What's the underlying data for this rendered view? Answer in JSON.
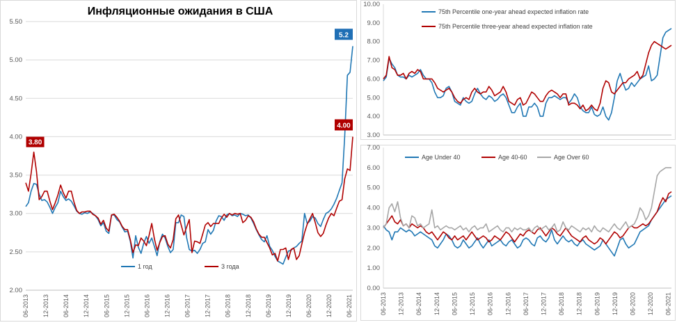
{
  "colors": {
    "blue": "#1f77b4",
    "red": "#b00000",
    "gray": "#a6a6a6",
    "grid": "#d9d9d9",
    "axis": "#bfbfbf",
    "blue_label_bg": "#1f6fb5",
    "red_label_bg": "#b00000"
  },
  "x_labels": [
    "06-2013",
    "12-2013",
    "06-2014",
    "12-2014",
    "06-2015",
    "12-2015",
    "06-2016",
    "12-2016",
    "06-2017",
    "12-2017",
    "06-2018",
    "12-2018",
    "06-2019",
    "12-2019",
    "06-2020",
    "12-2020",
    "06-2021"
  ],
  "chart_data": [
    {
      "type": "line",
      "title": "Инфляционные ожидания в США",
      "x_start": "06-2013",
      "x_end": "07-2021",
      "ylim": [
        2.0,
        5.5
      ],
      "yticks": [
        "2.00",
        "2.50",
        "3.00",
        "3.50",
        "4.00",
        "4.50",
        "5.00",
        "5.50"
      ],
      "grid": true,
      "legend_position": "bottom-center",
      "series": [
        {
          "name": "1 год",
          "color": "blue",
          "end_label": "5.2",
          "values": [
            3.09,
            3.14,
            3.29,
            3.39,
            3.38,
            3.25,
            3.17,
            3.18,
            3.15,
            3.08,
            3.0,
            3.08,
            3.14,
            3.29,
            3.22,
            3.17,
            3.19,
            3.16,
            3.1,
            3.03,
            3.0,
            2.99,
            3.01,
            3.0,
            3.02,
            3.0,
            2.97,
            2.92,
            2.84,
            2.88,
            2.77,
            2.74,
            2.98,
            2.98,
            2.92,
            2.89,
            2.82,
            2.76,
            2.77,
            2.64,
            2.42,
            2.71,
            2.56,
            2.48,
            2.61,
            2.7,
            2.61,
            2.68,
            2.57,
            2.45,
            2.63,
            2.73,
            2.68,
            2.57,
            2.49,
            2.53,
            2.88,
            2.88,
            2.98,
            2.96,
            2.69,
            2.53,
            2.51,
            2.52,
            2.48,
            2.53,
            2.61,
            2.63,
            2.79,
            2.73,
            2.78,
            2.9,
            2.97,
            2.96,
            2.91,
            2.98,
            3.0,
            2.97,
            2.98,
            2.96,
            3.0,
            2.99,
            2.97,
            2.98,
            2.94,
            2.87,
            2.79,
            2.72,
            2.66,
            2.63,
            2.71,
            2.57,
            2.52,
            2.44,
            2.38,
            2.36,
            2.34,
            2.43,
            2.51,
            2.52,
            2.55,
            2.57,
            2.61,
            2.64,
            3.0,
            2.87,
            2.9,
            2.96,
            2.94,
            2.87,
            2.83,
            2.92,
            3.0,
            3.02,
            3.06,
            3.12,
            3.2,
            3.3,
            3.4,
            4.0,
            4.8,
            4.84,
            5.18
          ]
        },
        {
          "name": "3 года",
          "color": "red",
          "end_label": "4.00",
          "values": [
            3.4,
            3.29,
            3.52,
            3.8,
            3.55,
            3.18,
            3.22,
            3.29,
            3.29,
            3.16,
            3.05,
            3.14,
            3.24,
            3.37,
            3.27,
            3.2,
            3.29,
            3.29,
            3.15,
            3.04,
            3.0,
            3.02,
            3.02,
            3.03,
            3.03,
            2.99,
            2.97,
            2.94,
            2.86,
            2.91,
            2.81,
            2.77,
            2.98,
            2.99,
            2.95,
            2.9,
            2.83,
            2.79,
            2.79,
            2.66,
            2.49,
            2.59,
            2.58,
            2.68,
            2.64,
            2.58,
            2.71,
            2.87,
            2.67,
            2.52,
            2.62,
            2.7,
            2.71,
            2.6,
            2.55,
            2.66,
            2.93,
            2.98,
            2.85,
            2.72,
            2.82,
            2.92,
            2.49,
            2.64,
            2.63,
            2.61,
            2.73,
            2.85,
            2.88,
            2.83,
            2.87,
            2.87,
            2.87,
            2.94,
            2.99,
            2.95,
            3.0,
            2.98,
            3.0,
            2.99,
            3.0,
            2.88,
            2.91,
            2.97,
            2.95,
            2.89,
            2.8,
            2.73,
            2.69,
            2.69,
            2.62,
            2.55,
            2.46,
            2.48,
            2.38,
            2.53,
            2.53,
            2.55,
            2.4,
            2.53,
            2.55,
            2.4,
            2.45,
            2.6,
            2.75,
            2.86,
            2.93,
            3.0,
            2.88,
            2.75,
            2.7,
            2.74,
            2.85,
            2.94,
            3.0,
            2.97,
            3.07,
            3.16,
            3.18,
            3.45,
            3.58,
            3.56,
            4.0
          ]
        }
      ]
    },
    {
      "type": "line",
      "x_start": "06-2013",
      "x_end": "07-2021",
      "ylim": [
        3.0,
        10.0
      ],
      "yticks": [
        "3.00",
        "4.00",
        "5.00",
        "6.00",
        "7.00",
        "8.00",
        "9.00",
        "10.00"
      ],
      "grid": false,
      "legend_position": "top",
      "series": [
        {
          "name": "75th Percentile one-year ahead expected inflation rate",
          "color": "blue",
          "values": [
            5.9,
            6.1,
            7.1,
            6.8,
            6.6,
            6.2,
            6.1,
            6.1,
            6.0,
            6.2,
            6.1,
            6.2,
            6.3,
            6.5,
            6.2,
            6.0,
            6.0,
            5.8,
            5.3,
            5.0,
            5.0,
            5.1,
            5.5,
            5.6,
            5.3,
            4.8,
            4.7,
            4.6,
            5.0,
            4.8,
            4.7,
            4.8,
            5.2,
            5.5,
            5.2,
            5.0,
            4.9,
            5.1,
            5.0,
            4.8,
            4.9,
            5.1,
            5.2,
            5.0,
            4.6,
            4.2,
            4.2,
            4.5,
            4.7,
            4.0,
            4.0,
            4.5,
            4.5,
            4.7,
            4.5,
            4.0,
            4.0,
            4.7,
            5.0,
            5.0,
            5.1,
            5.0,
            4.9,
            5.0,
            5.0,
            4.7,
            4.9,
            5.2,
            5.0,
            4.5,
            4.3,
            4.2,
            4.2,
            4.5,
            4.1,
            4.0,
            4.1,
            4.5,
            4.0,
            3.8,
            4.2,
            5.0,
            5.9,
            6.3,
            5.8,
            5.4,
            5.5,
            5.8,
            5.6,
            5.8,
            6.0,
            6.1,
            6.2,
            6.7,
            5.9,
            6.0,
            6.2,
            7.2,
            8.2,
            8.5,
            8.6,
            8.7
          ]
        },
        {
          "name": "75th Percentile three-year ahead expected inflation rate",
          "color": "red",
          "values": [
            6.0,
            6.2,
            7.2,
            6.6,
            6.5,
            6.2,
            6.2,
            6.3,
            6.0,
            6.3,
            6.4,
            6.3,
            6.5,
            6.4,
            6.0,
            6.0,
            6.0,
            6.0,
            5.8,
            5.5,
            5.4,
            5.3,
            5.4,
            5.5,
            5.3,
            5.0,
            4.8,
            4.7,
            4.9,
            5.0,
            4.9,
            5.3,
            5.5,
            5.3,
            5.2,
            5.3,
            5.3,
            5.6,
            5.4,
            5.1,
            5.2,
            5.3,
            5.6,
            5.3,
            4.8,
            4.7,
            4.6,
            4.9,
            5.0,
            4.6,
            4.7,
            5.0,
            5.3,
            5.2,
            5.0,
            4.8,
            4.8,
            5.1,
            5.3,
            5.4,
            5.3,
            5.2,
            5.0,
            5.2,
            5.2,
            4.6,
            4.7,
            4.7,
            4.6,
            4.4,
            4.6,
            4.3,
            4.4,
            4.6,
            4.4,
            4.3,
            4.7,
            5.5,
            5.9,
            5.8,
            5.3,
            5.2,
            5.4,
            5.6,
            5.8,
            5.8,
            6.0,
            6.1,
            6.2,
            6.4,
            6.0,
            6.2,
            6.8,
            7.4,
            7.8,
            8.0,
            7.9,
            7.8,
            7.7,
            7.6,
            7.7,
            7.8
          ]
        }
      ]
    },
    {
      "type": "line",
      "x_start": "06-2013",
      "x_end": "07-2021",
      "ylim": [
        0.0,
        7.0
      ],
      "yticks": [
        "0.00",
        "1.00",
        "2.00",
        "3.00",
        "4.00",
        "5.00",
        "6.00",
        "7.00"
      ],
      "grid": false,
      "legend_position": "top",
      "series": [
        {
          "name": "Age Under 40",
          "color": "blue",
          "values": [
            3.1,
            2.9,
            2.8,
            2.4,
            2.8,
            2.8,
            3.0,
            2.9,
            2.8,
            2.9,
            2.8,
            2.6,
            2.7,
            2.8,
            2.7,
            2.6,
            2.5,
            2.4,
            2.1,
            2.0,
            2.2,
            2.4,
            2.7,
            2.6,
            2.4,
            2.1,
            2.0,
            2.1,
            2.4,
            2.2,
            2.0,
            2.1,
            2.3,
            2.5,
            2.2,
            2.0,
            2.2,
            2.4,
            2.1,
            2.2,
            2.3,
            2.4,
            2.2,
            2.1,
            2.3,
            2.4,
            2.2,
            2.0,
            2.1,
            2.4,
            2.5,
            2.4,
            2.2,
            2.1,
            2.5,
            2.6,
            2.4,
            2.3,
            2.5,
            2.9,
            2.4,
            2.2,
            2.4,
            2.6,
            2.4,
            2.3,
            2.4,
            2.2,
            2.1,
            2.3,
            2.4,
            2.2,
            2.1,
            2.0,
            1.9,
            2.0,
            2.1,
            2.4,
            2.2,
            2.0,
            1.8,
            1.6,
            2.0,
            2.4,
            2.5,
            2.2,
            2.0,
            2.1,
            2.2,
            2.5,
            2.8,
            2.9,
            3.0,
            3.1,
            3.4,
            3.6,
            3.8,
            4.0,
            4.2,
            4.4,
            4.5,
            4.6
          ]
        },
        {
          "name": "Age 40-60",
          "color": "red",
          "values": [
            3.0,
            3.2,
            3.4,
            3.6,
            3.3,
            3.2,
            3.4,
            3.1,
            3.2,
            3.0,
            3.2,
            3.1,
            3.0,
            3.1,
            3.0,
            2.8,
            2.7,
            2.8,
            2.6,
            2.4,
            2.6,
            2.8,
            2.7,
            2.5,
            2.4,
            2.6,
            2.4,
            2.5,
            2.6,
            2.4,
            2.6,
            2.8,
            2.6,
            2.4,
            2.5,
            2.6,
            2.5,
            2.3,
            2.4,
            2.6,
            2.5,
            2.4,
            2.6,
            2.8,
            2.7,
            2.5,
            2.3,
            2.5,
            2.7,
            2.6,
            2.8,
            2.9,
            2.8,
            2.7,
            2.9,
            3.0,
            2.8,
            2.6,
            2.8,
            3.0,
            2.9,
            2.7,
            2.6,
            2.8,
            3.0,
            2.8,
            2.6,
            2.5,
            2.4,
            2.3,
            2.5,
            2.6,
            2.4,
            2.3,
            2.2,
            2.3,
            2.5,
            2.4,
            2.2,
            2.4,
            2.6,
            2.8,
            2.7,
            2.5,
            2.6,
            2.8,
            3.0,
            3.1,
            3.0,
            3.0,
            3.1,
            3.2,
            3.1,
            3.2,
            3.4,
            3.6,
            3.8,
            4.2,
            4.5,
            4.3,
            4.7,
            4.8
          ]
        },
        {
          "name": "Age Over 60",
          "color": "gray",
          "values": [
            3.0,
            3.2,
            4.0,
            4.2,
            3.8,
            4.3,
            3.5,
            3.1,
            3.2,
            3.0,
            3.6,
            3.5,
            3.1,
            3.2,
            3.0,
            3.1,
            3.2,
            3.9,
            3.0,
            3.1,
            2.9,
            3.0,
            3.1,
            3.0,
            3.0,
            2.9,
            3.0,
            3.1,
            2.9,
            3.0,
            2.8,
            3.0,
            3.1,
            2.9,
            3.0,
            3.0,
            3.2,
            2.8,
            2.9,
            3.0,
            3.1,
            2.9,
            2.8,
            3.0,
            3.0,
            2.8,
            3.0,
            2.9,
            3.0,
            2.9,
            2.9,
            3.0,
            2.8,
            3.0,
            3.1,
            2.9,
            3.0,
            3.1,
            2.9,
            3.0,
            3.2,
            2.8,
            2.9,
            3.3,
            3.0,
            2.9,
            3.1,
            3.0,
            2.9,
            2.8,
            3.0,
            2.9,
            3.0,
            2.8,
            3.1,
            2.9,
            2.8,
            3.0,
            2.9,
            2.8,
            3.0,
            3.2,
            3.0,
            2.9,
            3.1,
            3.3,
            3.0,
            3.1,
            3.2,
            3.5,
            4.0,
            3.8,
            3.4,
            3.6,
            4.0,
            4.8,
            5.6,
            5.8,
            5.9,
            6.0,
            6.0,
            6.0
          ]
        }
      ]
    }
  ]
}
